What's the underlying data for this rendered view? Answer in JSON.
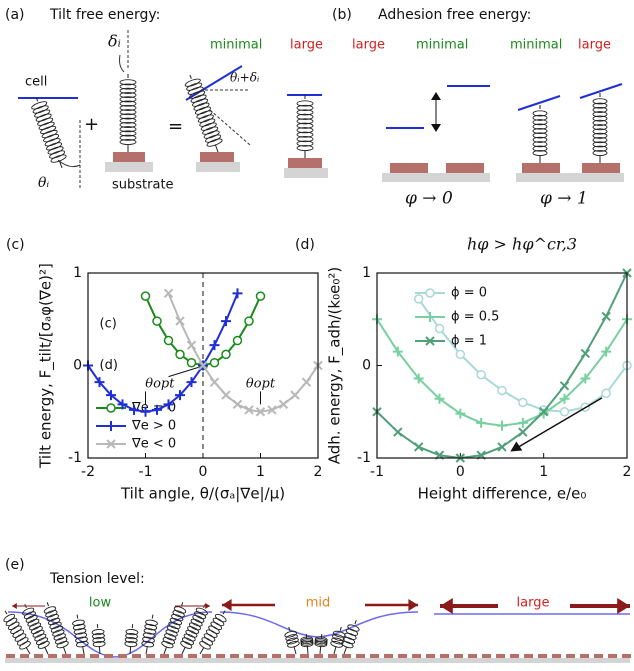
{
  "panels": {
    "a": {
      "label": "(a)",
      "title": "Tilt free energy:",
      "cell": "cell",
      "delta": "δᵢ",
      "theta": "θᵢ",
      "plus": "+",
      "equals": "=",
      "minimal": "minimal",
      "large": "large",
      "sum": "θᵢ+δᵢ",
      "substrate": "substrate"
    },
    "b": {
      "label": "(b)",
      "title": "Adhesion free energy:",
      "large1": "large",
      "minimal1": "minimal",
      "minimal2": "minimal",
      "large2": "large",
      "phi0": "φ → 0",
      "phi1": "φ → 1"
    },
    "e": {
      "label": "(e)",
      "title": "Tension level:",
      "low": "low",
      "mid": "mid",
      "large": "large"
    }
  },
  "chart_data": [
    {
      "type": "line",
      "label": "(c)",
      "xlabel": "Tilt angle, θ/(σₐ|∇e|/μ)",
      "ylabel": "Tilt energy, F_tilt/[σₐφ(∇e)²]",
      "x": [
        -2,
        -1.8,
        -1.6,
        -1.4,
        -1.2,
        -1,
        -0.8,
        -0.6,
        -0.4,
        -0.2,
        0,
        0.2,
        0.4,
        0.6,
        0.8,
        1,
        1.2,
        1.4,
        1.6,
        1.8,
        2
      ],
      "series": [
        {
          "name": "∇e = 0",
          "color": "#1a8a1a",
          "marker": "circle",
          "values": [
            null,
            null,
            null,
            null,
            null,
            0.75,
            0.48,
            0.27,
            0.12,
            0.03,
            0,
            0.03,
            0.12,
            0.27,
            0.48,
            0.75,
            null,
            null,
            null,
            null,
            null
          ]
        },
        {
          "name": "∇e > 0",
          "color": "#1f2fd6",
          "marker": "plus",
          "values": [
            0,
            -0.18,
            -0.32,
            -0.42,
            -0.48,
            -0.5,
            -0.48,
            -0.42,
            -0.32,
            -0.18,
            0,
            0.22,
            0.48,
            0.78,
            null,
            null,
            null,
            null,
            null,
            null,
            null
          ]
        },
        {
          "name": "∇e < 0",
          "color": "#b8b8b8",
          "marker": "x",
          "values": [
            null,
            null,
            null,
            null,
            null,
            null,
            null,
            0.78,
            0.48,
            0.22,
            0,
            -0.18,
            -0.32,
            -0.42,
            -0.48,
            -0.5,
            -0.48,
            -0.42,
            -0.32,
            -0.18,
            0
          ]
        }
      ],
      "xlim": [
        -2,
        2
      ],
      "ylim": [
        -1,
        1
      ],
      "xticks": [
        -2,
        -1,
        0,
        1,
        2
      ],
      "yticks": [
        -1,
        0,
        1
      ],
      "legend": "lower left",
      "annotations": [
        "(c)",
        "(d)",
        "θopt",
        "θopt"
      ]
    },
    {
      "type": "line",
      "label": "(d)",
      "title": "hφ > hφ^cr,3",
      "xlabel": "Height difference, e/e₀",
      "ylabel": "Adh. energy, F_adh/(k₀e₀²)",
      "x": [
        -1,
        -0.75,
        -0.5,
        -0.25,
        0,
        0.25,
        0.5,
        0.75,
        1,
        1.25,
        1.5,
        1.75,
        2
      ],
      "series": [
        {
          "name": "ϕ = 0",
          "color": "#a9d9d6",
          "marker": "circle",
          "values": [
            null,
            null,
            0.72,
            0.4,
            0.12,
            -0.1,
            -0.27,
            -0.4,
            -0.48,
            -0.5,
            -0.45,
            -0.3,
            0
          ]
        },
        {
          "name": "ϕ = 0.5",
          "color": "#78cf9f",
          "marker": "plus",
          "values": [
            0.5,
            0.15,
            -0.14,
            -0.36,
            -0.52,
            -0.62,
            -0.65,
            -0.62,
            -0.52,
            -0.36,
            -0.14,
            0.15,
            0.5
          ]
        },
        {
          "name": "ϕ = 1",
          "color": "#4f9f78",
          "marker": "x",
          "values": [
            -0.5,
            -0.72,
            -0.88,
            -0.97,
            -1,
            -0.97,
            -0.88,
            -0.72,
            -0.5,
            -0.22,
            0.13,
            0.53,
            1
          ]
        }
      ],
      "xlim": [
        -1,
        2
      ],
      "ylim": [
        -1,
        1
      ],
      "xticks": [
        -1,
        0,
        1,
        2
      ],
      "yticks": [
        -1,
        0,
        1
      ],
      "legend": "upper left"
    }
  ]
}
